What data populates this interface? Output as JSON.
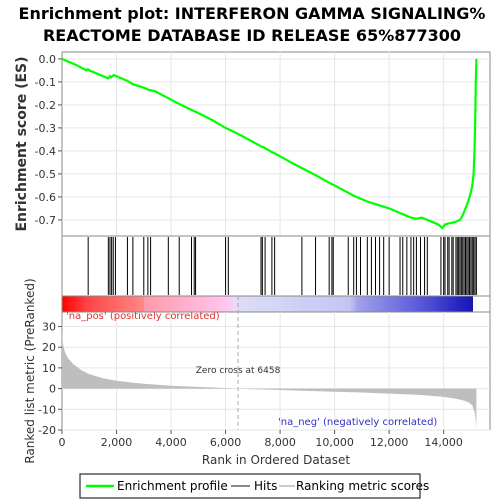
{
  "title_line1": "Enrichment plot: INTERFERON GAMMA SIGNALING%",
  "title_line2": "REACTOME DATABASE ID RELEASE 65%877300",
  "colors": {
    "es_line": "#00ff00",
    "hits": "#000000",
    "metric_fill": "#bebebe",
    "pos_label": "#e03030",
    "neg_label": "#3030c0"
  },
  "chart_data": [
    {
      "type": "line",
      "name": "enrichment-score",
      "ylabel": "Enrichment score (ES)",
      "ylim": [
        -0.77,
        0.03
      ],
      "yticks": [
        0.0,
        -0.1,
        -0.2,
        -0.3,
        -0.4,
        -0.5,
        -0.6,
        -0.7
      ],
      "ytick_labels": [
        "0.0",
        "-0.1",
        "-0.2",
        "-0.3",
        "-0.4",
        "-0.5",
        "-0.6",
        "-0.7"
      ],
      "xlim": [
        0,
        15700
      ],
      "series": [
        {
          "name": "Enrichment profile",
          "x": [
            0,
            500,
            900,
            950,
            1000,
            1300,
            1700,
            1760,
            1800,
            1900,
            2000,
            2400,
            2600,
            3000,
            3200,
            3400,
            3800,
            4200,
            4800,
            4900,
            5500,
            6000,
            6100,
            6600,
            7300,
            7400,
            7700,
            7800,
            8400,
            8800,
            9300,
            9900,
            10000,
            10700,
            10800,
            11200,
            11600,
            12000,
            12400,
            12600,
            12800,
            13000,
            13200,
            13400,
            13600,
            13800,
            13950,
            14050,
            14200,
            14400,
            14600,
            14700,
            14800,
            14900,
            15000,
            15050,
            15100,
            15130,
            15160,
            15180,
            15200
          ],
          "y": [
            0.0,
            -0.025,
            -0.05,
            -0.045,
            -0.05,
            -0.065,
            -0.085,
            -0.075,
            -0.08,
            -0.07,
            -0.075,
            -0.095,
            -0.11,
            -0.125,
            -0.135,
            -0.14,
            -0.165,
            -0.19,
            -0.225,
            -0.23,
            -0.265,
            -0.3,
            -0.305,
            -0.335,
            -0.38,
            -0.385,
            -0.405,
            -0.41,
            -0.45,
            -0.475,
            -0.505,
            -0.545,
            -0.55,
            -0.595,
            -0.6,
            -0.62,
            -0.635,
            -0.65,
            -0.67,
            -0.68,
            -0.69,
            -0.695,
            -0.69,
            -0.7,
            -0.71,
            -0.72,
            -0.735,
            -0.72,
            -0.715,
            -0.71,
            -0.7,
            -0.68,
            -0.65,
            -0.62,
            -0.58,
            -0.55,
            -0.5,
            -0.4,
            -0.25,
            -0.1,
            0.0
          ]
        }
      ]
    },
    {
      "type": "scatter",
      "name": "hits",
      "xlim": [
        0,
        15700
      ],
      "x": [
        960,
        1700,
        1760,
        1820,
        1880,
        1960,
        2400,
        2600,
        3000,
        3150,
        3250,
        3900,
        4300,
        4750,
        4850,
        4900,
        6000,
        6100,
        7300,
        7350,
        7450,
        7700,
        7800,
        8800,
        9300,
        9800,
        9900,
        9950,
        10500,
        10700,
        10800,
        10950,
        11200,
        11350,
        11500,
        11650,
        11800,
        12000,
        12400,
        12500,
        12650,
        12800,
        12900,
        13000,
        13150,
        13300,
        13400,
        13900,
        14000,
        14050,
        14150,
        14200,
        14300,
        14350,
        14450,
        14500,
        14550,
        14600,
        14650,
        14700,
        14750,
        14800,
        14850,
        14900,
        14950,
        15000,
        15050,
        15100,
        15150,
        15200
      ]
    },
    {
      "type": "area",
      "name": "ranked-list-metric",
      "ylabel": "Ranked list metric (PreRanked)",
      "xlabel": "Rank in Ordered Dataset",
      "ylim": [
        -20,
        37
      ],
      "yticks": [
        30,
        20,
        10,
        0,
        -10,
        -20
      ],
      "ytick_labels": [
        "30",
        "20",
        "10",
        "0",
        "-10",
        "-20"
      ],
      "xlim": [
        0,
        15700
      ],
      "xticks": [
        0,
        2000,
        4000,
        6000,
        8000,
        10000,
        12000,
        14000
      ],
      "xtick_labels": [
        "0",
        "2,000",
        "4,000",
        "6,000",
        "8,000",
        "10,000",
        "12,000",
        "14,000"
      ],
      "x": [
        0,
        30,
        100,
        200,
        400,
        700,
        1000,
        1500,
        2000,
        2500,
        3000,
        4000,
        5000,
        6000,
        6458,
        7000,
        8000,
        9000,
        10000,
        11000,
        12000,
        13000,
        13500,
        14000,
        14400,
        14700,
        14900,
        15050,
        15150,
        15200
      ],
      "y": [
        28,
        22,
        18,
        15,
        12,
        9,
        7,
        5,
        3.8,
        3,
        2.3,
        1.4,
        0.8,
        0.3,
        0,
        -0.3,
        -0.7,
        -1.1,
        -1.5,
        -1.9,
        -2.4,
        -3.0,
        -3.5,
        -4.0,
        -4.8,
        -5.6,
        -6.5,
        -8,
        -12,
        -19
      ]
    }
  ],
  "annotations": {
    "na_pos": "'na_pos' (positively correlated)",
    "na_neg": "'na_neg' (negatively correlated)",
    "zero_cross": "Zero cross at 6458",
    "zero_cross_rank": 6458
  },
  "legend": {
    "items": [
      "Enrichment profile",
      "Hits",
      "Ranking metric scores"
    ]
  }
}
